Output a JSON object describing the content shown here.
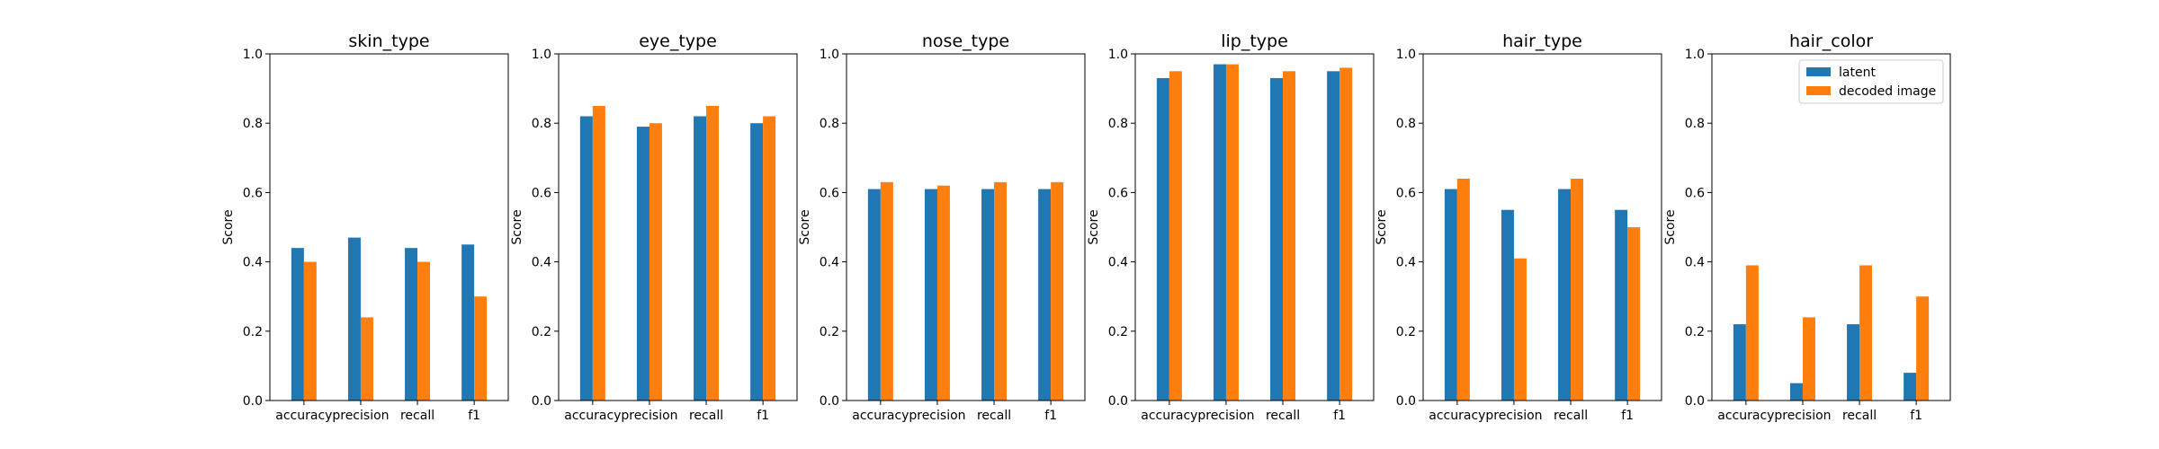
{
  "chart_data": [
    {
      "type": "bar",
      "title": "skin_type",
      "ylabel": "Score",
      "ylim": [
        0,
        1
      ],
      "yticks": [
        "0.0",
        "0.2",
        "0.4",
        "0.6",
        "0.8",
        "1.0"
      ],
      "categories": [
        "accuracy",
        "precision",
        "recall",
        "f1"
      ],
      "series": [
        {
          "name": "latent",
          "color": "#1f77b4",
          "values": [
            0.44,
            0.47,
            0.44,
            0.45
          ]
        },
        {
          "name": "decoded image",
          "color": "#ff7f0e",
          "values": [
            0.4,
            0.24,
            0.4,
            0.3
          ]
        }
      ],
      "legend": false
    },
    {
      "type": "bar",
      "title": "eye_type",
      "ylabel": "Score",
      "ylim": [
        0,
        1
      ],
      "yticks": [
        "0.0",
        "0.2",
        "0.4",
        "0.6",
        "0.8",
        "1.0"
      ],
      "categories": [
        "accuracy",
        "precision",
        "recall",
        "f1"
      ],
      "series": [
        {
          "name": "latent",
          "color": "#1f77b4",
          "values": [
            0.82,
            0.79,
            0.82,
            0.8
          ]
        },
        {
          "name": "decoded image",
          "color": "#ff7f0e",
          "values": [
            0.85,
            0.8,
            0.85,
            0.82
          ]
        }
      ],
      "legend": false
    },
    {
      "type": "bar",
      "title": "nose_type",
      "ylabel": "Score",
      "ylim": [
        0,
        1
      ],
      "yticks": [
        "0.0",
        "0.2",
        "0.4",
        "0.6",
        "0.8",
        "1.0"
      ],
      "categories": [
        "accuracy",
        "precision",
        "recall",
        "f1"
      ],
      "series": [
        {
          "name": "latent",
          "color": "#1f77b4",
          "values": [
            0.61,
            0.61,
            0.61,
            0.61
          ]
        },
        {
          "name": "decoded image",
          "color": "#ff7f0e",
          "values": [
            0.63,
            0.62,
            0.63,
            0.63
          ]
        }
      ],
      "legend": false
    },
    {
      "type": "bar",
      "title": "lip_type",
      "ylabel": "Score",
      "ylim": [
        0,
        1
      ],
      "yticks": [
        "0.0",
        "0.2",
        "0.4",
        "0.6",
        "0.8",
        "1.0"
      ],
      "categories": [
        "accuracy",
        "precision",
        "recall",
        "f1"
      ],
      "series": [
        {
          "name": "latent",
          "color": "#1f77b4",
          "values": [
            0.93,
            0.97,
            0.93,
            0.95
          ]
        },
        {
          "name": "decoded image",
          "color": "#ff7f0e",
          "values": [
            0.95,
            0.97,
            0.95,
            0.96
          ]
        }
      ],
      "legend": false
    },
    {
      "type": "bar",
      "title": "hair_type",
      "ylabel": "Score",
      "ylim": [
        0,
        1
      ],
      "yticks": [
        "0.0",
        "0.2",
        "0.4",
        "0.6",
        "0.8",
        "1.0"
      ],
      "categories": [
        "accuracy",
        "precision",
        "recall",
        "f1"
      ],
      "series": [
        {
          "name": "latent",
          "color": "#1f77b4",
          "values": [
            0.61,
            0.55,
            0.61,
            0.55
          ]
        },
        {
          "name": "decoded image",
          "color": "#ff7f0e",
          "values": [
            0.64,
            0.41,
            0.64,
            0.5
          ]
        }
      ],
      "legend": false
    },
    {
      "type": "bar",
      "title": "hair_color",
      "ylabel": "Score",
      "ylim": [
        0,
        1
      ],
      "yticks": [
        "0.0",
        "0.2",
        "0.4",
        "0.6",
        "0.8",
        "1.0"
      ],
      "categories": [
        "accuracy",
        "precision",
        "recall",
        "f1"
      ],
      "series": [
        {
          "name": "latent",
          "color": "#1f77b4",
          "values": [
            0.22,
            0.05,
            0.22,
            0.08
          ]
        },
        {
          "name": "decoded image",
          "color": "#ff7f0e",
          "values": [
            0.39,
            0.24,
            0.39,
            0.3
          ]
        }
      ],
      "legend": true,
      "legend_position": "upper right"
    }
  ]
}
